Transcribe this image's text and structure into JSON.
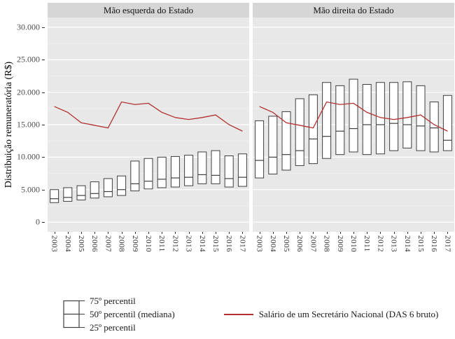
{
  "chart_data": {
    "type": "boxplot",
    "title": "",
    "ylabel": "Distribuição remuneratória (R$)",
    "ylim": [
      0,
      30000
    ],
    "grid": true,
    "legend_position": "bottom",
    "panel_bg": "#e8e8e8",
    "strip_bg": "#d6d6d6",
    "box_stroke": "#3f3f3f",
    "line_color": "#b23030",
    "y_ticks": [
      {
        "value": 0,
        "label": "0"
      },
      {
        "value": 5000,
        "label": "5.000"
      },
      {
        "value": 10000,
        "label": "10.000"
      },
      {
        "value": 15000,
        "label": "15.000"
      },
      {
        "value": 20000,
        "label": "20.000"
      },
      {
        "value": 25000,
        "label": "25.000"
      },
      {
        "value": 30000,
        "label": "30.000"
      }
    ],
    "years": [
      2003,
      2004,
      2005,
      2006,
      2007,
      2008,
      2009,
      2010,
      2011,
      2012,
      2013,
      2014,
      2015,
      2016,
      2017
    ],
    "panels": [
      {
        "title": "Mão esquerda do Estado",
        "p25": [
          3000,
          3200,
          3400,
          3700,
          3900,
          4100,
          4800,
          5100,
          5300,
          5400,
          5600,
          5900,
          5900,
          5400,
          5500
        ],
        "p50": [
          3600,
          3800,
          4100,
          4400,
          4700,
          5000,
          5900,
          6300,
          6600,
          6800,
          6900,
          7300,
          7200,
          6700,
          6900
        ],
        "p75": [
          5000,
          5300,
          5600,
          6200,
          6700,
          7100,
          9400,
          9800,
          10000,
          10100,
          10300,
          10800,
          11000,
          10200,
          10500
        ],
        "line": [
          17800,
          16900,
          15300,
          14900,
          14500,
          18500,
          18100,
          18300,
          16900,
          16100,
          15800,
          16100,
          16500,
          15000,
          14000
        ]
      },
      {
        "title": "Mão direita do Estado",
        "p25": [
          6800,
          7400,
          8000,
          8700,
          9000,
          9800,
          10400,
          10800,
          10400,
          10500,
          11000,
          11400,
          11000,
          10800,
          11000
        ],
        "p50": [
          9500,
          10000,
          10400,
          11000,
          12800,
          13200,
          14000,
          14400,
          15000,
          15000,
          15200,
          15000,
          14800,
          14500,
          12600
        ],
        "p75": [
          15600,
          16300,
          17000,
          19000,
          19600,
          21500,
          21000,
          22000,
          21200,
          21500,
          21500,
          21600,
          21000,
          18500,
          19500
        ],
        "line": [
          17800,
          16900,
          15300,
          14900,
          14500,
          18500,
          18100,
          18300,
          16900,
          16100,
          15800,
          16100,
          16500,
          15000,
          14000
        ]
      }
    ],
    "legend": {
      "box_labels": [
        "75º percentil",
        "50º percentil (mediana)",
        "25º percentil"
      ],
      "line_label": "Salário de um Secretário Nacional (DAS 6 bruto)"
    }
  }
}
